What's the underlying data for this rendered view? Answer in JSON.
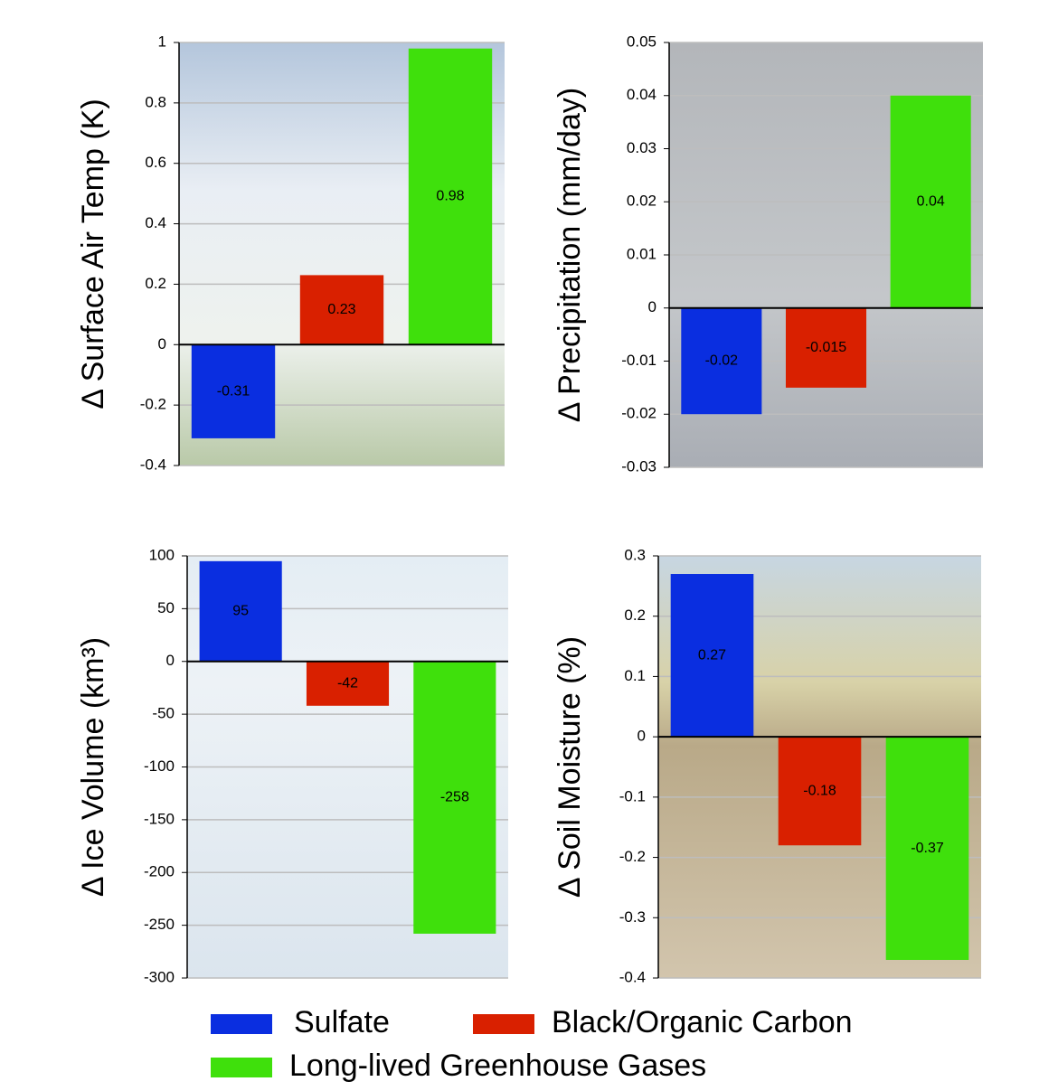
{
  "legend": [
    {
      "name": "Sulfate",
      "color": "#0a2ee0"
    },
    {
      "name": "Black/Organic Carbon",
      "color": "#d92000"
    },
    {
      "name": "Long-lived Greenhouse Gases",
      "color": "#3fe00c"
    }
  ],
  "chart_data": [
    {
      "type": "bar",
      "ylabel": "Δ Surface Air Temp (K)",
      "values": [
        -0.31,
        0.23,
        0.98
      ],
      "ylim": [
        -0.4,
        1
      ],
      "yticks": [
        -0.4,
        -0.2,
        0,
        0.2,
        0.4,
        0.6,
        0.8,
        1
      ],
      "grid": true
    },
    {
      "type": "bar",
      "ylabel": "Δ Precipitation (mm/day)",
      "values": [
        -0.02,
        -0.015,
        0.04
      ],
      "ylim": [
        -0.03,
        0.05
      ],
      "yticks": [
        -0.03,
        -0.02,
        -0.01,
        0,
        0.01,
        0.02,
        0.03,
        0.04,
        0.05
      ],
      "grid": true
    },
    {
      "type": "bar",
      "ylabel": "Δ Ice Volume (km³)",
      "values": [
        95,
        -42,
        -258
      ],
      "ylim": [
        -300,
        100
      ],
      "yticks": [
        -300,
        -250,
        -200,
        -150,
        -100,
        -50,
        0,
        50,
        100
      ],
      "grid": true
    },
    {
      "type": "bar",
      "ylabel": "Δ Soil Moisture  (%)",
      "values": [
        0.27,
        -0.18,
        -0.37
      ],
      "ylim": [
        -0.4,
        0.3
      ],
      "yticks": [
        -0.4,
        -0.3,
        -0.2,
        -0.1,
        0,
        0.1,
        0.2,
        0.3
      ],
      "grid": true
    }
  ]
}
